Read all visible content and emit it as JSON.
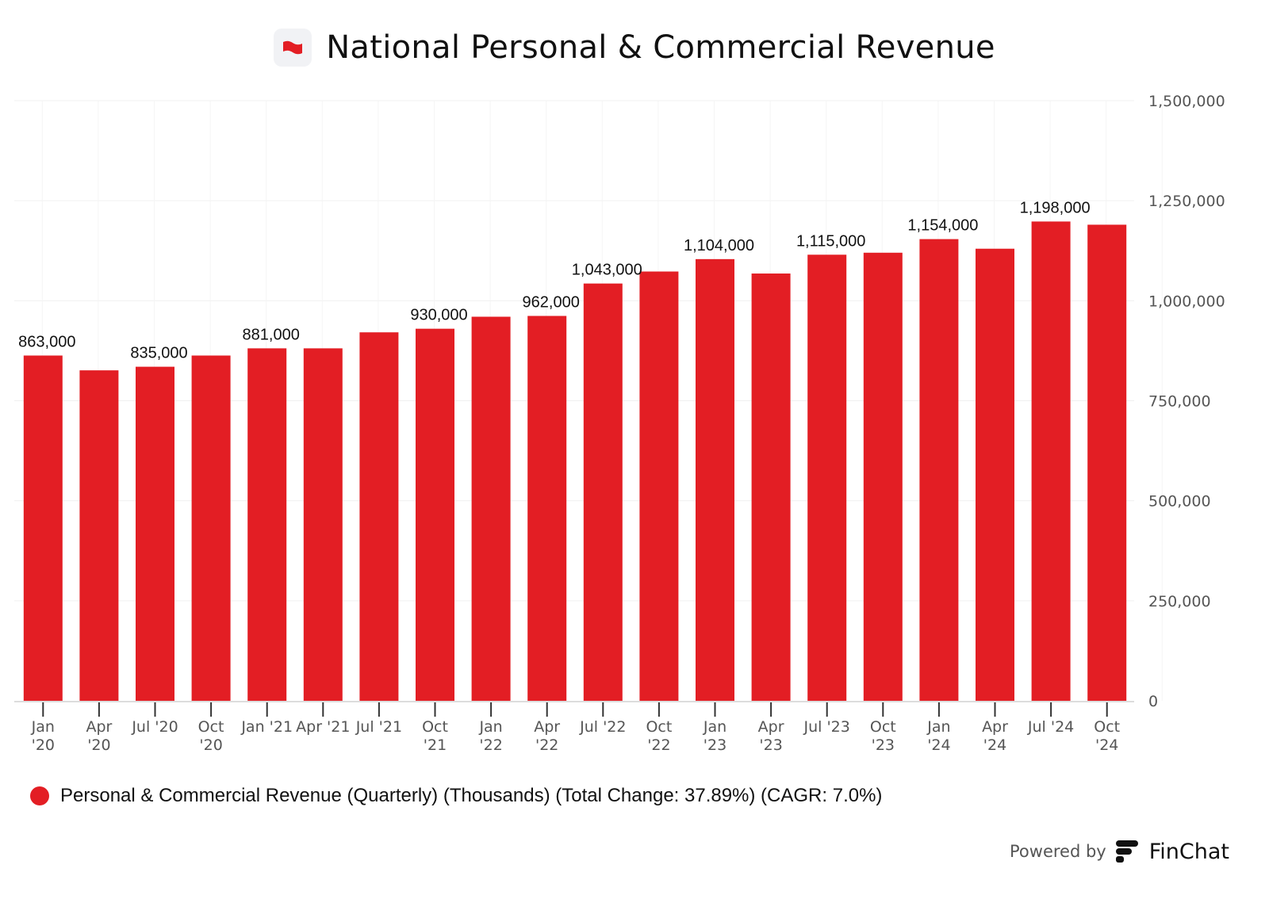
{
  "header": {
    "title": "National Personal & Commercial Revenue",
    "logo_icon": "national-bank-flag-icon"
  },
  "chart_data": {
    "type": "bar",
    "title": "National Personal & Commercial Revenue",
    "xlabel": "",
    "ylabel": "",
    "ylim": [
      0,
      1500000
    ],
    "yticks": [
      0,
      250000,
      500000,
      750000,
      1000000,
      1250000,
      1500000
    ],
    "ytick_labels": [
      "0",
      "250,000",
      "500,000",
      "750,000",
      "1,000,000",
      "1,250,000",
      "1,500,000"
    ],
    "y_axis_position": "right",
    "grid": true,
    "categories": [
      [
        "Jan",
        "'20"
      ],
      [
        "Apr",
        "'20"
      ],
      [
        "Jul '20"
      ],
      [
        "Oct",
        "'20"
      ],
      [
        "Jan '21"
      ],
      [
        "Apr '21"
      ],
      [
        "Jul '21"
      ],
      [
        "Oct",
        "'21"
      ],
      [
        "Jan",
        "'22"
      ],
      [
        "Apr",
        "'22"
      ],
      [
        "Jul '22"
      ],
      [
        "Oct",
        "'22"
      ],
      [
        "Jan",
        "'23"
      ],
      [
        "Apr",
        "'23"
      ],
      [
        "Jul '23"
      ],
      [
        "Oct",
        "'23"
      ],
      [
        "Jan",
        "'24"
      ],
      [
        "Apr",
        "'24"
      ],
      [
        "Jul '24"
      ],
      [
        "Oct",
        "'24"
      ]
    ],
    "series": [
      {
        "name": "Personal & Commercial Revenue (Quarterly) (Thousands) (Total Change: 37.89%) (CAGR: 7.0%)",
        "color": "#e31e24",
        "values": [
          863000,
          826000,
          835000,
          863000,
          881000,
          881000,
          921000,
          930000,
          960000,
          962000,
          1043000,
          1073000,
          1104000,
          1068000,
          1115000,
          1120000,
          1154000,
          1130000,
          1198000,
          1190000
        ],
        "data_labels": [
          "863,000",
          null,
          "835,000",
          null,
          "881,000",
          null,
          null,
          "930,000",
          null,
          "962,000",
          "1,043,000",
          null,
          "1,104,000",
          null,
          "1,115,000",
          null,
          "1,154,000",
          null,
          "1,198,000",
          null
        ]
      }
    ],
    "legend_position": "bottom-left"
  },
  "legend": {
    "label": "Personal & Commercial Revenue (Quarterly) (Thousands) (Total Change: 37.89%) (CAGR: 7.0%)"
  },
  "footer": {
    "powered_by": "Powered by",
    "brand": "FinChat"
  }
}
